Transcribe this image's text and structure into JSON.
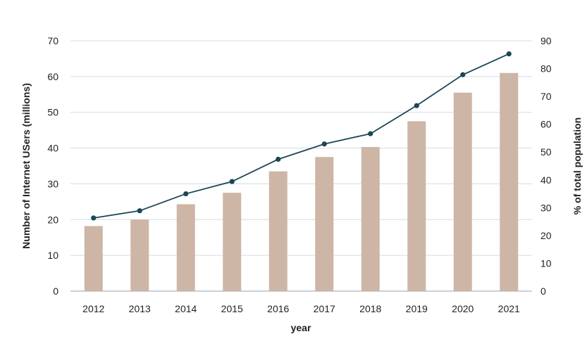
{
  "chart_data": {
    "type": "bar+line",
    "title": "",
    "xlabel": "year",
    "ylabel": "Number of Internet USers (millions)",
    "y2label": "% of total population",
    "categories": [
      "2012",
      "2013",
      "2014",
      "2015",
      "2016",
      "2017",
      "2018",
      "2019",
      "2020",
      "2021"
    ],
    "ylim": [
      0,
      70
    ],
    "y2lim": [
      0,
      90
    ],
    "yticks": [
      0,
      10,
      20,
      30,
      40,
      50,
      60,
      70
    ],
    "y2ticks": [
      0,
      10,
      20,
      30,
      40,
      50,
      60,
      70,
      80,
      90
    ],
    "grid": true,
    "series": [
      {
        "name": "Number of Internet USers (millions)",
        "type": "bar",
        "axis": "left",
        "color": "#cdb6a6",
        "values": [
          18.2,
          20.0,
          24.3,
          27.5,
          33.5,
          37.5,
          40.3,
          47.5,
          55.5,
          61.0
        ]
      },
      {
        "name": "% of total population",
        "type": "line",
        "axis": "right",
        "color": "#1d4656",
        "values": [
          26.3,
          28.9,
          35.0,
          39.4,
          47.4,
          52.9,
          56.6,
          66.7,
          77.8,
          85.3
        ]
      }
    ]
  }
}
